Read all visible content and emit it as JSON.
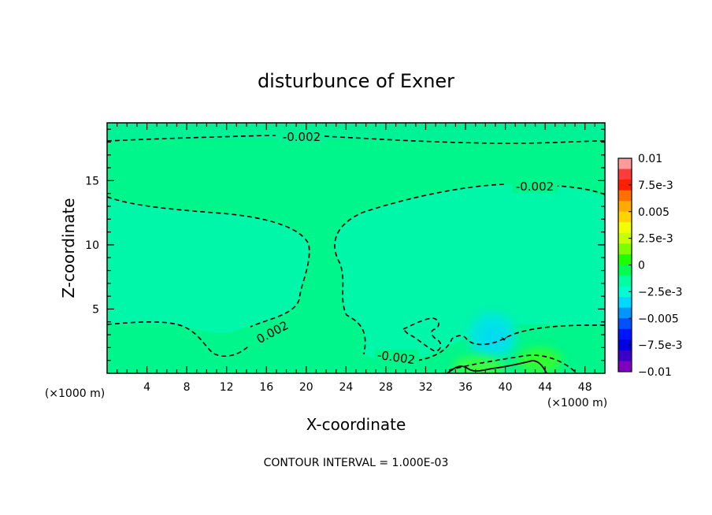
{
  "chart_data": {
    "type": "heatmap",
    "title": "disturbunce of Exner",
    "xlabel": "X-coordinate",
    "ylabel": "Z-coordinate",
    "x_unit_left": "(×1000 m)",
    "x_unit_right": "(×1000 m)",
    "xlim": [
      0,
      50
    ],
    "ylim": [
      0,
      19.5
    ],
    "x_ticks": [
      4,
      8,
      12,
      16,
      20,
      24,
      28,
      32,
      36,
      40,
      44,
      48
    ],
    "x_tick_labels": [
      "4",
      "8",
      "12",
      "16",
      "20",
      "24",
      "28",
      "32",
      "36",
      "40",
      "44",
      "48"
    ],
    "y_ticks": [
      5,
      10,
      15
    ],
    "y_tick_labels": [
      "5",
      "10",
      "15"
    ],
    "colorbar": {
      "range": [
        -0.01,
        0.01
      ],
      "labels": [
        "0.01",
        "7.5e-3",
        "0.005",
        "2.5e-3",
        "0",
        "−2.5e-3",
        "−0.005",
        "−7.5e-3",
        "−0.01"
      ],
      "label_values": [
        0.01,
        0.0075,
        0.005,
        0.0025,
        0,
        -0.0025,
        -0.005,
        -0.0075,
        -0.01
      ],
      "colors": [
        "#ff9a9a",
        "#ff3b3b",
        "#ff1f00",
        "#ff7000",
        "#ffaa00",
        "#ffd400",
        "#f2ff00",
        "#c8ff00",
        "#7cff00",
        "#1eff00",
        "#00ff55",
        "#00ffa0",
        "#00ffd0",
        "#00d8ff",
        "#0096ff",
        "#0050ff",
        "#0014ff",
        "#0000e0",
        "#3a00c8",
        "#8000c0"
      ]
    },
    "background_value": -0.0015,
    "contour_level": -0.002,
    "contour_labels": [
      {
        "text": "-0.002",
        "x": 18.7,
        "y": 18.6
      },
      {
        "text": "-0.002",
        "x": 44.0,
        "y": 14.9
      },
      {
        "text": "0.002",
        "x": 17.5,
        "y": 3.5
      },
      {
        "text": "-0.002",
        "x": 28.5,
        "y": 1.1
      }
    ],
    "contour_interval_text": "CONTOUR INTERVAL = 1.000E-03"
  }
}
